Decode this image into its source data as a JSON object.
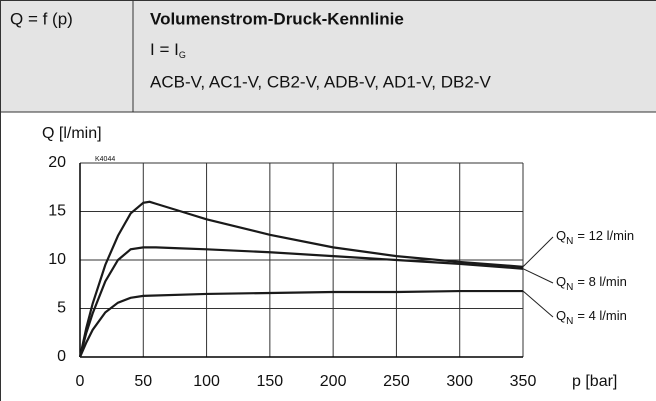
{
  "header": {
    "left": "Q = f (p)",
    "title": "Volumenstrom-Druck-Kennlinie",
    "current_symbol": "I = I",
    "current_subscript": "G",
    "models": "ACB-V, AC1-V, CB2-V, ADB-V, AD1-V, DB2-V"
  },
  "chart_data": {
    "type": "line",
    "y_label": "Q [l/min]",
    "x_label": "p [bar]",
    "code": "K4044",
    "xlim": [
      0,
      350
    ],
    "xticks": [
      0,
      50,
      100,
      150,
      200,
      250,
      300,
      350
    ],
    "ylim": [
      0,
      20
    ],
    "yticks": [
      0,
      5,
      10,
      15,
      20
    ],
    "grid": true,
    "label_symbol": "Q",
    "label_subscript": "N",
    "series": [
      {
        "name": "= 12 l/min",
        "color": "#1a1a1a",
        "x": [
          0,
          5,
          10,
          20,
          30,
          40,
          50,
          55,
          60,
          80,
          100,
          150,
          200,
          250,
          300,
          350
        ],
        "values": [
          0,
          3,
          5.5,
          9.5,
          12.5,
          14.8,
          15.9,
          16.0,
          15.8,
          15.0,
          14.2,
          12.6,
          11.3,
          10.4,
          9.8,
          9.3
        ]
      },
      {
        "name": "= 8 l/min",
        "color": "#1a1a1a",
        "x": [
          0,
          5,
          10,
          20,
          30,
          40,
          50,
          60,
          80,
          100,
          150,
          200,
          250,
          300,
          350
        ],
        "values": [
          0,
          2.5,
          4.5,
          7.8,
          10,
          11.1,
          11.3,
          11.3,
          11.2,
          11.1,
          10.8,
          10.4,
          10.0,
          9.6,
          9.1
        ]
      },
      {
        "name": "= 4 l/min",
        "color": "#1a1a1a",
        "x": [
          0,
          5,
          10,
          20,
          30,
          40,
          50,
          100,
          150,
          200,
          250,
          300,
          350
        ],
        "values": [
          0,
          1.5,
          2.8,
          4.6,
          5.6,
          6.1,
          6.3,
          6.5,
          6.6,
          6.7,
          6.7,
          6.8,
          6.8
        ]
      }
    ]
  }
}
